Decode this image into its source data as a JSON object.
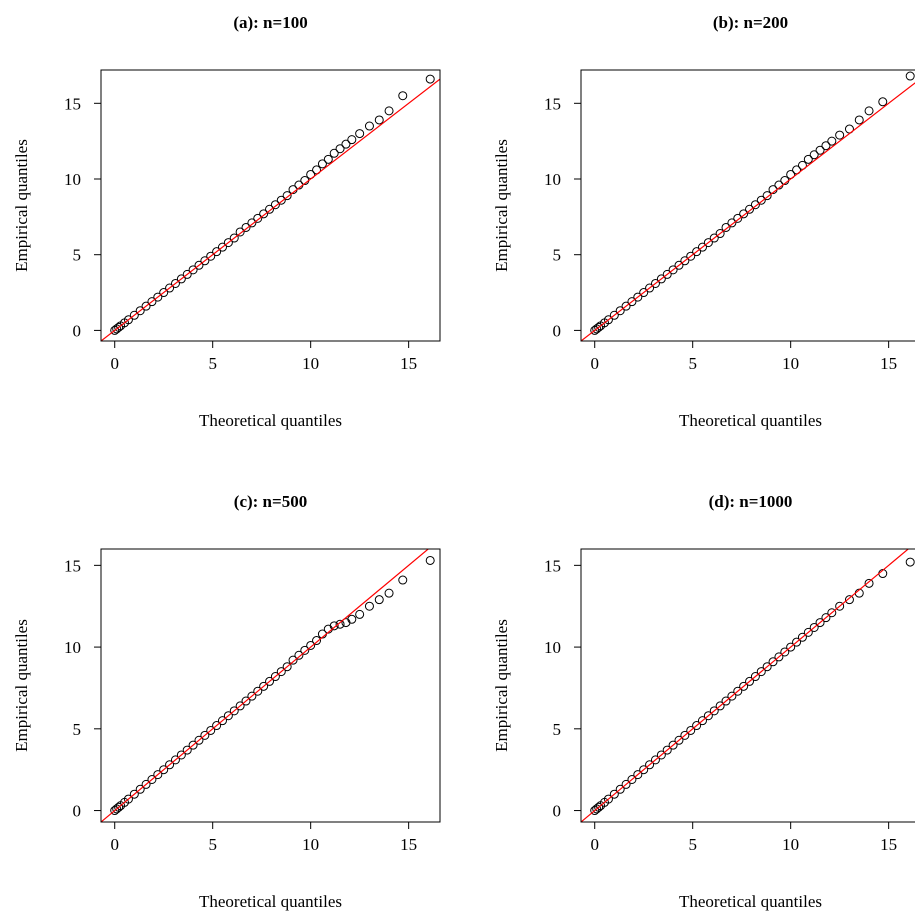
{
  "chart_data": [
    {
      "type": "scatter",
      "title": "(a): n=100",
      "x_label": "Theoretical quantiles",
      "y_label": "Empirical quantiles",
      "xlim": [
        -0.7,
        16.6
      ],
      "ylim": [
        -0.7,
        17.2
      ],
      "xticks": [
        0,
        5,
        10,
        15
      ],
      "yticks": [
        0,
        5,
        10,
        15
      ],
      "color": "#000000",
      "reference_line": {
        "intercept": 0,
        "slope": 1,
        "color": "#ff0000"
      },
      "x": [
        0,
        0.1,
        0.2,
        0.3,
        0.5,
        0.7,
        1,
        1.3,
        1.6,
        1.9,
        2.2,
        2.5,
        2.8,
        3.1,
        3.4,
        3.7,
        4,
        4.3,
        4.6,
        4.9,
        5.2,
        5.5,
        5.8,
        6.1,
        6.4,
        6.7,
        7,
        7.3,
        7.6,
        7.9,
        8.2,
        8.5,
        8.8,
        9.1,
        9.4,
        9.7,
        10,
        10.3,
        10.6,
        10.9,
        11.2,
        11.5,
        11.8,
        12.1,
        12.5,
        13,
        13.5,
        14,
        14.7,
        16.1
      ],
      "y": [
        0,
        0.1,
        0.2,
        0.3,
        0.5,
        0.7,
        1,
        1.3,
        1.6,
        1.9,
        2.2,
        2.5,
        2.8,
        3.1,
        3.4,
        3.7,
        4,
        4.3,
        4.6,
        4.9,
        5.2,
        5.5,
        5.8,
        6.1,
        6.5,
        6.8,
        7.1,
        7.4,
        7.7,
        8,
        8.3,
        8.6,
        8.9,
        9.3,
        9.6,
        9.9,
        10.3,
        10.6,
        11,
        11.3,
        11.7,
        12,
        12.3,
        12.6,
        13,
        13.5,
        13.9,
        14.5,
        15.5,
        16.6
      ]
    },
    {
      "type": "scatter",
      "title": "(b): n=200",
      "x_label": "Theoretical quantiles",
      "y_label": "Empirical quantiles",
      "xlim": [
        -0.7,
        16.6
      ],
      "ylim": [
        -0.7,
        17.2
      ],
      "xticks": [
        0,
        5,
        10,
        15
      ],
      "yticks": [
        0,
        5,
        10,
        15
      ],
      "color": "#000000",
      "reference_line": {
        "intercept": 0,
        "slope": 1,
        "color": "#ff0000"
      },
      "x": [
        0,
        0.1,
        0.2,
        0.3,
        0.5,
        0.7,
        1,
        1.3,
        1.6,
        1.9,
        2.2,
        2.5,
        2.8,
        3.1,
        3.4,
        3.7,
        4,
        4.3,
        4.6,
        4.9,
        5.2,
        5.5,
        5.8,
        6.1,
        6.4,
        6.7,
        7,
        7.3,
        7.6,
        7.9,
        8.2,
        8.5,
        8.8,
        9.1,
        9.4,
        9.7,
        10,
        10.3,
        10.6,
        10.9,
        11.2,
        11.5,
        11.8,
        12.1,
        12.5,
        13,
        13.5,
        14,
        14.7,
        16.1
      ],
      "y": [
        0,
        0.1,
        0.2,
        0.3,
        0.5,
        0.7,
        1,
        1.3,
        1.6,
        1.9,
        2.2,
        2.5,
        2.8,
        3.1,
        3.4,
        3.7,
        4,
        4.3,
        4.6,
        4.9,
        5.2,
        5.5,
        5.8,
        6.1,
        6.4,
        6.8,
        7.1,
        7.4,
        7.7,
        8,
        8.3,
        8.6,
        8.9,
        9.3,
        9.6,
        9.9,
        10.3,
        10.6,
        10.9,
        11.3,
        11.6,
        11.9,
        12.2,
        12.5,
        12.9,
        13.3,
        13.9,
        14.5,
        15.1,
        16.8
      ]
    },
    {
      "type": "scatter",
      "title": "(c): n=500",
      "x_label": "Theoretical quantiles",
      "y_label": "Empirical quantiles",
      "xlim": [
        -0.7,
        16.6
      ],
      "ylim": [
        -0.7,
        16.0
      ],
      "xticks": [
        0,
        5,
        10,
        15
      ],
      "yticks": [
        0,
        5,
        10,
        15
      ],
      "color": "#000000",
      "reference_line": {
        "intercept": 0,
        "slope": 1,
        "color": "#ff0000"
      },
      "x": [
        0,
        0.1,
        0.2,
        0.3,
        0.5,
        0.7,
        1,
        1.3,
        1.6,
        1.9,
        2.2,
        2.5,
        2.8,
        3.1,
        3.4,
        3.7,
        4,
        4.3,
        4.6,
        4.9,
        5.2,
        5.5,
        5.8,
        6.1,
        6.4,
        6.7,
        7,
        7.3,
        7.6,
        7.9,
        8.2,
        8.5,
        8.8,
        9.1,
        9.4,
        9.7,
        10,
        10.3,
        10.6,
        10.9,
        11.2,
        11.5,
        11.8,
        12.1,
        12.5,
        13,
        13.5,
        14,
        14.7,
        16.1
      ],
      "y": [
        0,
        0.1,
        0.2,
        0.3,
        0.5,
        0.7,
        1,
        1.3,
        1.6,
        1.9,
        2.2,
        2.5,
        2.8,
        3.1,
        3.4,
        3.7,
        4,
        4.3,
        4.6,
        4.9,
        5.2,
        5.5,
        5.8,
        6.1,
        6.4,
        6.7,
        7,
        7.3,
        7.6,
        7.9,
        8.2,
        8.5,
        8.8,
        9.2,
        9.5,
        9.8,
        10.1,
        10.4,
        10.8,
        11.1,
        11.3,
        11.4,
        11.5,
        11.7,
        12,
        12.5,
        12.9,
        13.3,
        14.1,
        15.3
      ]
    },
    {
      "type": "scatter",
      "title": "(d): n=1000",
      "x_label": "Theoretical quantiles",
      "y_label": "Empirical quantiles",
      "xlim": [
        -0.7,
        16.6
      ],
      "ylim": [
        -0.7,
        16.0
      ],
      "xticks": [
        0,
        5,
        10,
        15
      ],
      "yticks": [
        0,
        5,
        10,
        15
      ],
      "color": "#000000",
      "reference_line": {
        "intercept": 0,
        "slope": 1,
        "color": "#ff0000"
      },
      "x": [
        0,
        0.1,
        0.2,
        0.3,
        0.5,
        0.7,
        1,
        1.3,
        1.6,
        1.9,
        2.2,
        2.5,
        2.8,
        3.1,
        3.4,
        3.7,
        4,
        4.3,
        4.6,
        4.9,
        5.2,
        5.5,
        5.8,
        6.1,
        6.4,
        6.7,
        7,
        7.3,
        7.6,
        7.9,
        8.2,
        8.5,
        8.8,
        9.1,
        9.4,
        9.7,
        10,
        10.3,
        10.6,
        10.9,
        11.2,
        11.5,
        11.8,
        12.1,
        12.5,
        13,
        13.5,
        14,
        14.7,
        16.1
      ],
      "y": [
        0,
        0.1,
        0.2,
        0.3,
        0.5,
        0.7,
        1,
        1.3,
        1.6,
        1.9,
        2.2,
        2.5,
        2.8,
        3.1,
        3.4,
        3.7,
        4,
        4.3,
        4.6,
        4.9,
        5.2,
        5.5,
        5.8,
        6.1,
        6.4,
        6.7,
        7,
        7.3,
        7.6,
        7.9,
        8.2,
        8.5,
        8.8,
        9.1,
        9.4,
        9.7,
        10,
        10.3,
        10.6,
        10.9,
        11.2,
        11.5,
        11.8,
        12.1,
        12.5,
        12.9,
        13.3,
        13.9,
        14.5,
        15.2
      ]
    }
  ]
}
